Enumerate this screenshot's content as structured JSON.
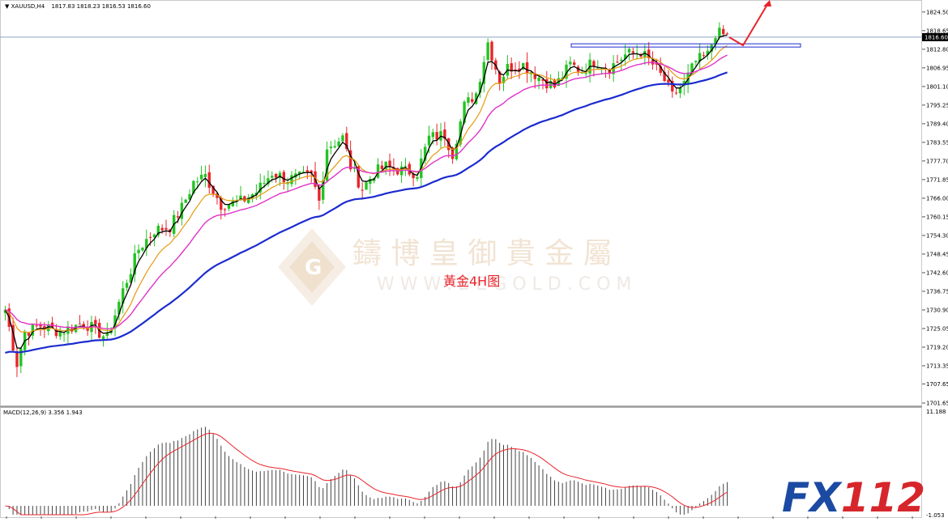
{
  "header": {
    "symbol": "XAUUSD,H4",
    "ohlc": "1817.83 1818.23 1816.53 1816.60"
  },
  "watermark": {
    "chinese": "鑄 博 皇 御 貴 金 屬",
    "url": "W W W . B E G O L D . C O M",
    "caption": "黃金4H图",
    "logo_letter": "G"
  },
  "brand_logo": {
    "text": "FX112",
    "colors": {
      "fx": "#1b4aa3",
      "num": "#d6262b"
    }
  },
  "colors": {
    "bull": "#22c322",
    "bear": "#e8242b",
    "ma_fast": "#000000",
    "ma_mid": "#e69a10",
    "ma_slow": "#e032c8",
    "ma_long": "#1b2bcf",
    "macd_signal": "#e8242b",
    "hline": "#8fa3c8",
    "arrow": "#e8242b"
  },
  "chart_data": [
    {
      "type": "candlestick",
      "title": "XAUUSD,H4",
      "ylim": [
        1701.65,
        1827.0
      ],
      "y_ticks": [
        "1824.50",
        "1818.65",
        "1812.80",
        "1806.95",
        "1801.10",
        "1795.25",
        "1789.40",
        "1783.55",
        "1777.70",
        "1771.85",
        "1766.00",
        "1760.15",
        "1754.30",
        "1748.45",
        "1742.60",
        "1736.75",
        "1730.90",
        "1725.05",
        "1719.20",
        "1713.35",
        "1707.65",
        "1701.65"
      ],
      "current_price": "1816.60",
      "resistance_level": 1814.0,
      "close_anchors": [
        [
          0,
          1731
        ],
        [
          3,
          1714
        ],
        [
          5,
          1724
        ],
        [
          9,
          1726
        ],
        [
          14,
          1724
        ],
        [
          20,
          1727
        ],
        [
          26,
          1722
        ],
        [
          30,
          1737
        ],
        [
          34,
          1750
        ],
        [
          38,
          1756
        ],
        [
          42,
          1757
        ],
        [
          45,
          1763
        ],
        [
          48,
          1771
        ],
        [
          51,
          1773
        ],
        [
          55,
          1764
        ],
        [
          60,
          1765
        ],
        [
          64,
          1768
        ],
        [
          68,
          1774
        ],
        [
          72,
          1772
        ],
        [
          78,
          1773
        ],
        [
          80,
          1765
        ],
        [
          82,
          1782
        ],
        [
          86,
          1785
        ],
        [
          88,
          1776
        ],
        [
          91,
          1769
        ],
        [
          94,
          1774
        ],
        [
          97,
          1776
        ],
        [
          100,
          1775
        ],
        [
          105,
          1774
        ],
        [
          108,
          1785
        ],
        [
          112,
          1786
        ],
        [
          114,
          1780
        ],
        [
          117,
          1795
        ],
        [
          120,
          1799
        ],
        [
          123,
          1815
        ],
        [
          126,
          1803
        ],
        [
          128,
          1807
        ],
        [
          132,
          1808
        ],
        [
          136,
          1804
        ],
        [
          140,
          1801
        ],
        [
          144,
          1808
        ],
        [
          147,
          1806
        ],
        [
          150,
          1809
        ],
        [
          154,
          1807
        ],
        [
          158,
          1811
        ],
        [
          162,
          1812
        ],
        [
          165,
          1808
        ],
        [
          168,
          1803
        ],
        [
          170,
          1798
        ],
        [
          173,
          1802
        ],
        [
          176,
          1809
        ],
        [
          179,
          1811
        ],
        [
          181,
          1818
        ],
        [
          184,
          1817
        ]
      ],
      "ma_series": [
        {
          "name": "fast",
          "period_factor": 0.45
        },
        {
          "name": "mid",
          "period_factor": 0.18
        },
        {
          "name": "slow",
          "period_factor": 0.09
        },
        {
          "name": "long",
          "period_factor": 0.035
        }
      ]
    },
    {
      "type": "bar",
      "title": "MACD(12,26,9) 3.356 1.943",
      "ylim": [
        -1.053,
        11.188
      ],
      "y_ticks": [
        "11.188",
        "-1.053"
      ]
    }
  ]
}
